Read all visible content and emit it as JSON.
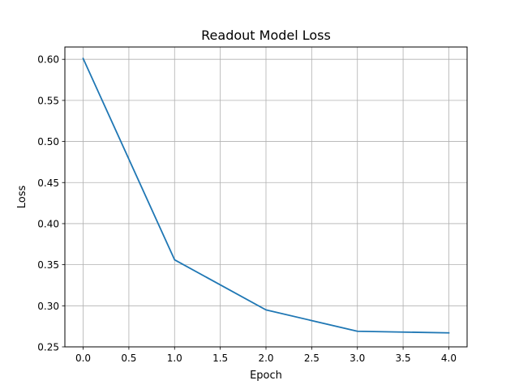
{
  "chart_data": {
    "type": "line",
    "title": "Readout Model Loss",
    "xlabel": "Epoch",
    "ylabel": "Loss",
    "x": [
      0,
      1,
      2,
      3,
      4
    ],
    "series": [
      {
        "name": "loss",
        "values": [
          0.601,
          0.356,
          0.295,
          0.269,
          0.267
        ]
      }
    ],
    "xlim": [
      -0.2,
      4.2
    ],
    "ylim": [
      0.25,
      0.615
    ],
    "xticks": [
      0.0,
      0.5,
      1.0,
      1.5,
      2.0,
      2.5,
      3.0,
      3.5,
      4.0
    ],
    "xtick_labels": [
      "0.0",
      "0.5",
      "1.0",
      "1.5",
      "2.0",
      "2.5",
      "3.0",
      "3.5",
      "4.0"
    ],
    "yticks": [
      0.25,
      0.3,
      0.35,
      0.4,
      0.45,
      0.5,
      0.55,
      0.6
    ],
    "ytick_labels": [
      "0.25",
      "0.30",
      "0.35",
      "0.40",
      "0.45",
      "0.50",
      "0.55",
      "0.60"
    ],
    "grid": true,
    "colors": {
      "line": "#1f77b4",
      "grid": "#b0b0b0",
      "axes": "#000000"
    }
  }
}
